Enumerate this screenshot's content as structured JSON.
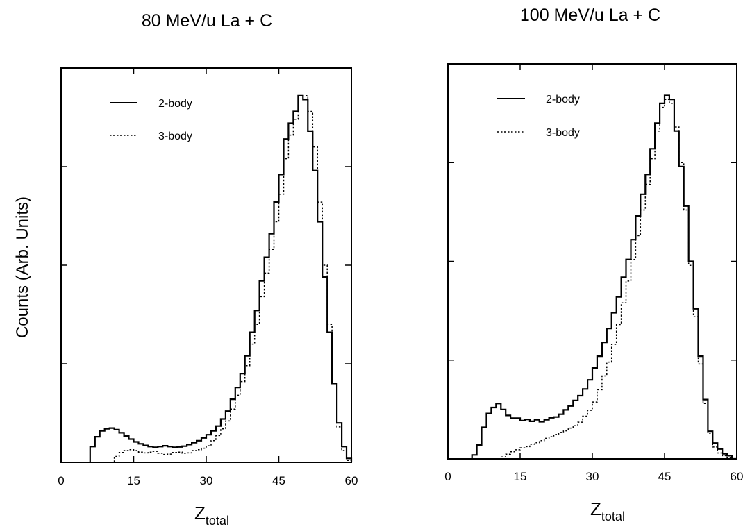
{
  "chart_data": [
    {
      "type": "line",
      "title": "80 MeV/u La + C",
      "xlabel_main": "Z",
      "xlabel_sub": "total",
      "ylabel": "Counts (Arb. Units)",
      "xlim": [
        0,
        60
      ],
      "ylim": [
        0,
        100
      ],
      "x_ticks": [
        0,
        15,
        30,
        45,
        60
      ],
      "legend_position": "top-left",
      "bin_width": 1,
      "x": [
        6,
        7,
        8,
        9,
        10,
        11,
        12,
        13,
        14,
        15,
        16,
        17,
        18,
        19,
        20,
        21,
        22,
        23,
        24,
        25,
        26,
        27,
        28,
        29,
        30,
        31,
        32,
        33,
        34,
        35,
        36,
        37,
        38,
        39,
        40,
        41,
        42,
        43,
        44,
        45,
        46,
        47,
        48,
        49,
        50,
        51,
        52,
        53,
        54,
        55,
        56,
        57,
        58,
        59
      ],
      "series": [
        {
          "name": "2-body",
          "style": "solid",
          "values": [
            4,
            6.5,
            8,
            8.5,
            8.7,
            8.3,
            7.5,
            6.7,
            5.9,
            5.2,
            4.7,
            4.3,
            4.0,
            3.8,
            4.0,
            4.2,
            4.0,
            3.8,
            3.9,
            4.1,
            4.5,
            5.0,
            5.5,
            6.2,
            7.0,
            8.0,
            9.2,
            11,
            13,
            16,
            19,
            22.5,
            27,
            33,
            38.5,
            46,
            52,
            58,
            66,
            73,
            82,
            86,
            89,
            93,
            92,
            84,
            74,
            61,
            47,
            33,
            20,
            10,
            4,
            1
          ]
        },
        {
          "name": "3-body",
          "style": "dotted",
          "values": [
            0,
            0,
            0,
            0,
            0,
            1.5,
            2.5,
            3.0,
            3.2,
            3.0,
            2.6,
            2.4,
            2.6,
            2.8,
            2.3,
            2.0,
            2.1,
            2.5,
            2.6,
            2.3,
            2.4,
            3.0,
            3.2,
            3.6,
            4.2,
            5.5,
            6.8,
            8.5,
            10.5,
            13.5,
            17,
            20.5,
            24.5,
            30,
            35,
            42,
            48,
            54,
            61,
            68,
            77,
            83,
            87,
            93,
            93,
            89,
            80,
            66,
            50,
            35,
            20,
            9,
            3,
            0.5
          ]
        }
      ]
    },
    {
      "type": "line",
      "title": "100 MeV/u La + C",
      "xlabel_main": "Z",
      "xlabel_sub": "total",
      "ylabel": "",
      "xlim": [
        0,
        60
      ],
      "ylim": [
        0,
        100
      ],
      "x_ticks": [
        0,
        15,
        30,
        45,
        60
      ],
      "legend_position": "top-left",
      "bin_width": 1,
      "x": [
        5,
        6,
        7,
        8,
        9,
        10,
        11,
        12,
        13,
        14,
        15,
        16,
        17,
        18,
        19,
        20,
        21,
        22,
        23,
        24,
        25,
        26,
        27,
        28,
        29,
        30,
        31,
        32,
        33,
        34,
        35,
        36,
        37,
        38,
        39,
        40,
        41,
        42,
        43,
        44,
        45,
        46,
        47,
        48,
        49,
        50,
        51,
        52,
        53,
        54,
        55,
        56,
        57,
        58,
        59
      ],
      "series": [
        {
          "name": "2-body",
          "style": "solid",
          "values": [
            1,
            3.5,
            8,
            11.5,
            13,
            14,
            12.5,
            11,
            10.3,
            10.3,
            9.7,
            10,
            9.5,
            9.9,
            9.4,
            9.9,
            10.4,
            10.6,
            11.3,
            12.4,
            13.4,
            14.8,
            16,
            17.7,
            20,
            23,
            26,
            29.5,
            33,
            37,
            41,
            46,
            50.5,
            55.5,
            61.5,
            67,
            72,
            78.5,
            85,
            90,
            92,
            91,
            83,
            74,
            64,
            50,
            38,
            26,
            15,
            7,
            4,
            2.5,
            1.3,
            0.8,
            0
          ]
        },
        {
          "name": "3-body",
          "style": "dotted",
          "values": [
            0,
            0,
            0,
            0,
            0,
            0,
            0.5,
            1.2,
            1.8,
            2.3,
            2.8,
            3.1,
            3.7,
            4.1,
            4.6,
            5.2,
            5.6,
            6.2,
            6.7,
            7.1,
            7.8,
            8.4,
            9.3,
            10.8,
            12.3,
            14.4,
            17.5,
            21,
            24.5,
            29,
            34,
            39.5,
            45,
            50.5,
            56.5,
            63,
            69.5,
            76,
            83,
            89,
            91,
            90,
            84,
            75,
            63,
            49,
            36,
            24,
            14,
            6.5,
            3,
            1.5,
            0.8,
            0.3,
            0
          ]
        }
      ]
    }
  ]
}
